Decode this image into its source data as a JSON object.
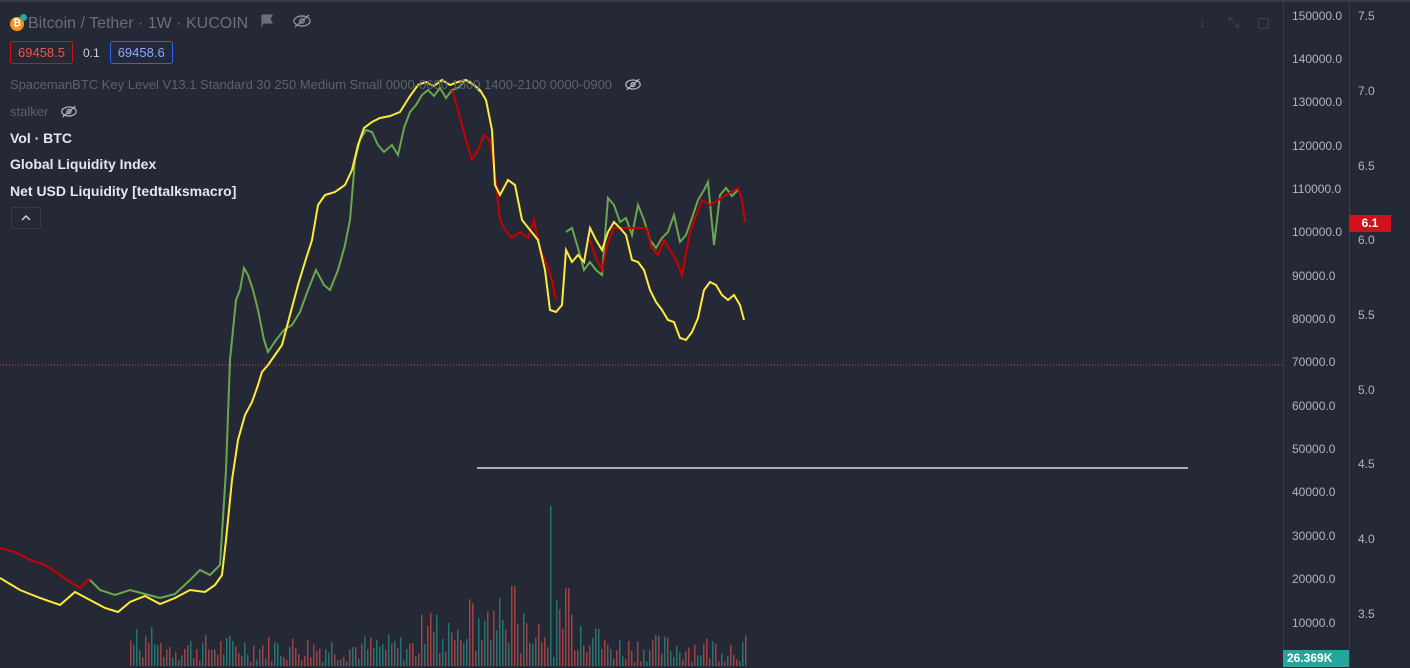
{
  "header": {
    "symbol_title": "Bitcoin / Tether · 1W · KUCOIN",
    "coin_icon": "bitcoin-icon",
    "bid_price": "69458.5",
    "spread": "0.1",
    "ask_price": "69458.6"
  },
  "indicators": [
    {
      "label": "SpacemanBTC Key Level V13.1 Standard 30 250 Medium Small 0000-0600 1600 1400-2100 0000-0900"
    },
    {
      "label": "stalker"
    },
    {
      "label": "Vol · BTC"
    },
    {
      "label": "Global Liquidity Index"
    },
    {
      "label": "Net USD Liquidity [tedtalksmacro]"
    }
  ],
  "price_axis": {
    "ticks": [
      "150000.0",
      "140000.0",
      "130000.0",
      "120000.0",
      "110000.0",
      "100000.0",
      "90000.0",
      "80000.0",
      "70000.0",
      "60000.0",
      "50000.0",
      "40000.0",
      "30000.0",
      "20000.0",
      "10000.0"
    ],
    "badge": "26.369K"
  },
  "secondary_axis": {
    "ticks": [
      "7.5",
      "7.0",
      "6.5",
      "6.0",
      "5.5",
      "5.0",
      "4.5",
      "4.0",
      "3.5"
    ],
    "badge": "6.1"
  },
  "colors": {
    "background": "#252835",
    "yellow_line": "#ffeb3b",
    "green_line": "#6aa84f",
    "red_line": "#cc0000",
    "volume_green": "#26a69a",
    "volume_red": "#ef5350",
    "price_marker": "#26a69a",
    "secondary_marker": "#d0121b"
  }
}
